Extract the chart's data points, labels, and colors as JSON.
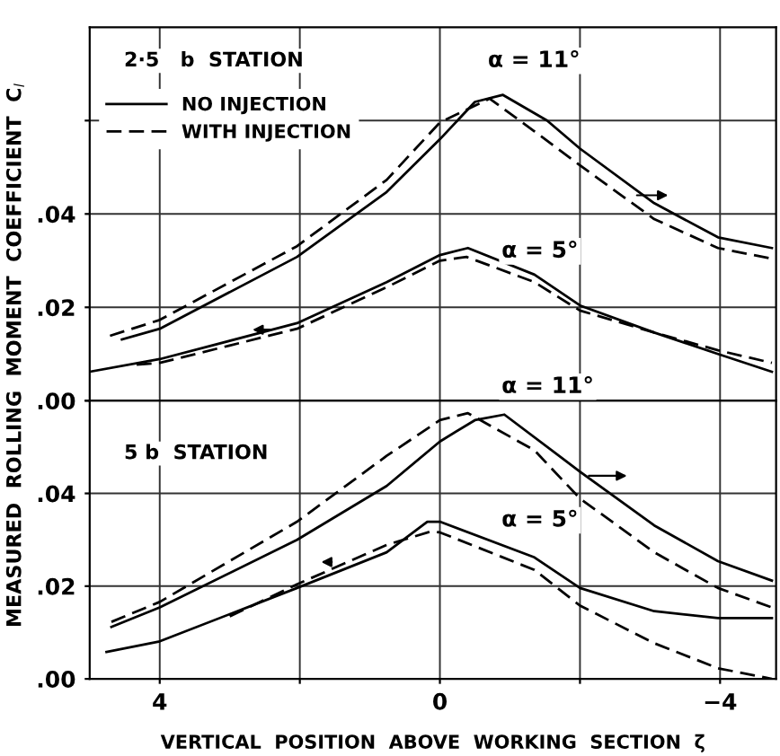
{
  "chart_data": [
    {
      "type": "line",
      "legend": "top left",
      "grid": true,
      "marker": "none",
      "tick_labels": "y",
      "ylabel": "MEASURED  ROLLING  MOMENT  COEFFICIENT  C$_{l}$",
      "annotations": [
        "2·5   b  STATION",
        "α = 11°",
        "α = 5°"
      ],
      "xlim": [
        5,
        -4.8
      ],
      "xticks": [
        {
          "value": 4,
          "label": null
        },
        {
          "value": 2,
          "label": null
        },
        {
          "value": 0,
          "label": null
        },
        {
          "value": -2,
          "label": null
        },
        {
          "value": -4,
          "label": null
        }
      ],
      "ylim": [
        0,
        0.08
      ],
      "yticks": [
        {
          "value": 0,
          "label": ".00"
        },
        {
          "value": 0.02,
          "label": ".02"
        },
        {
          "value": 0.04,
          "label": ".04"
        },
        {
          "value": 0.06,
          "label": null
        }
      ],
      "series": [
        {
          "name": "NO INJECTION",
          "color": "#000000",
          "line_style": "solid",
          "x": [
            4.54,
            4,
            2.04,
            0.76,
            0,
            -0.5,
            -0.9,
            -1.53,
            -2,
            -3.06,
            -3.97,
            -4.74
          ],
          "values": [
            0.0131,
            0.0154,
            0.0308,
            0.0447,
            0.056,
            0.064,
            0.0655,
            0.06,
            0.054,
            0.0423,
            0.035,
            0.0327
          ]
        },
        {
          "name": "WITH INJECTION",
          "color": "#000000",
          "line_style": "dashed",
          "x": [
            4.71,
            4,
            2.04,
            0.76,
            0,
            -0.71,
            -1.35,
            -2,
            -3.06,
            -3.97,
            -4.74
          ],
          "values": [
            0.0139,
            0.0173,
            0.0331,
            0.0473,
            0.0596,
            0.0647,
            0.0577,
            0.0504,
            0.0389,
            0.0327,
            0.0304
          ]
        },
        {
          "color": "#000000",
          "line_style": "solid",
          "x": [
            5.0,
            4,
            2.04,
            0.76,
            0,
            -0.4,
            -1.35,
            -2,
            -3.06,
            -3.97,
            -4.74
          ],
          "values": [
            0.0062,
            0.0089,
            0.0166,
            0.0254,
            0.0312,
            0.0327,
            0.027,
            0.0204,
            0.0146,
            0.01,
            0.0062
          ]
        },
        {
          "color": "#000000",
          "line_style": "dashed",
          "x": [
            4.33,
            4,
            2.04,
            0.76,
            0,
            -0.38,
            -1.35,
            -2,
            -3.06,
            -3.97,
            -4.74
          ],
          "values": [
            0.0077,
            0.0081,
            0.0154,
            0.0243,
            0.03,
            0.0308,
            0.0254,
            0.0193,
            0.0146,
            0.0108,
            0.0081
          ]
        }
      ]
    },
    {
      "type": "line",
      "grid": true,
      "marker": "none",
      "xlabel": "VERTICAL  POSITION  ABOVE  WORKING  SECTION  ζ",
      "annotations": [
        "5 b  STATION",
        "α = 11°",
        "α = 5°"
      ],
      "xlim": [
        5,
        -4.8
      ],
      "xticks": [
        {
          "value": 4,
          "label": "4"
        },
        {
          "value": 2,
          "label": null
        },
        {
          "value": 0,
          "label": "0"
        },
        {
          "value": -2,
          "label": null
        },
        {
          "value": -4,
          "label": "−4"
        }
      ],
      "ylim": [
        0,
        0.06
      ],
      "yticks": [
        {
          "value": 0,
          "label": ".00"
        },
        {
          "value": 0.02,
          "label": ".02"
        },
        {
          "value": 0.04,
          "label": ".04"
        },
        {
          "value": 0.06,
          "label": null
        }
      ],
      "series": [
        {
          "color": "#000000",
          "line_style": "solid",
          "x": [
            4.69,
            4,
            2.04,
            0.76,
            0,
            -0.5,
            -0.92,
            -2,
            -3.06,
            -3.97,
            -4.74
          ],
          "values": [
            0.0112,
            0.0154,
            0.03,
            0.0416,
            0.0512,
            0.0558,
            0.057,
            0.0447,
            0.0331,
            0.0254,
            0.0212
          ]
        },
        {
          "color": "#000000",
          "line_style": "dashed",
          "x": [
            4.69,
            4,
            2.04,
            0.76,
            0,
            -0.4,
            -1.35,
            -2,
            -3.06,
            -3.97,
            -4.74
          ],
          "values": [
            0.0123,
            0.0166,
            0.0339,
            0.0481,
            0.0558,
            0.0573,
            0.0493,
            0.0389,
            0.0273,
            0.0196,
            0.0154
          ]
        },
        {
          "color": "#000000",
          "line_style": "solid",
          "x": [
            4.76,
            4,
            2.04,
            0.76,
            0.18,
            0,
            -1.35,
            -2,
            -3.06,
            -3.97,
            -4.74
          ],
          "values": [
            0.0058,
            0.0081,
            0.0196,
            0.0273,
            0.0339,
            0.0339,
            0.0262,
            0.0196,
            0.0146,
            0.0131,
            0.0131
          ]
        },
        {
          "color": "#000000",
          "line_style": "dashed",
          "x": [
            3,
            2.04,
            0.76,
            0.13,
            0,
            -1.35,
            -2,
            -3.06,
            -3.97,
            -4.74
          ],
          "values": [
            0.0135,
            0.0204,
            0.0289,
            0.0318,
            0.0316,
            0.0235,
            0.0158,
            0.0077,
            0.0023,
            0.0
          ]
        }
      ]
    }
  ]
}
